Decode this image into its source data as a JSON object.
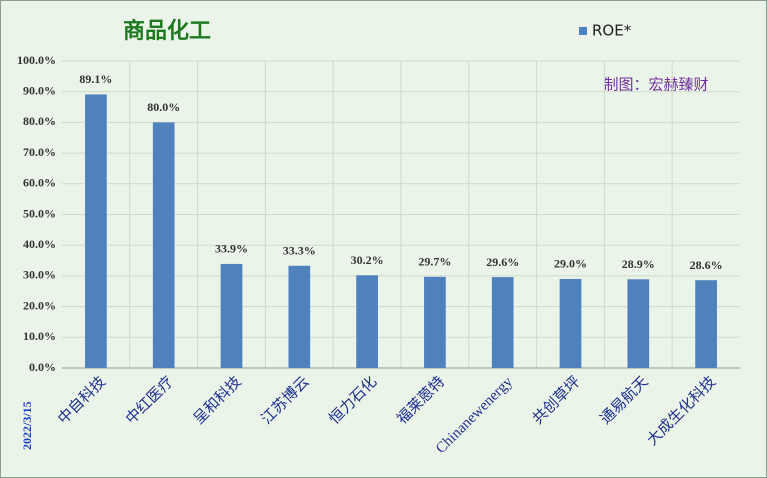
{
  "chart_data": {
    "type": "bar",
    "title": "商品化工",
    "annotation": "制图：宏赫臻财",
    "date": "2022/3/15",
    "categories": [
      "中自科技",
      "中红医疗",
      "呈和科技",
      "江苏博云",
      "恒力石化",
      "福莱蒽特",
      "Chinanewenergy",
      "共创草坪",
      "通易航天",
      "大成生化科技"
    ],
    "series": [
      {
        "name": "ROE*",
        "color": "#4f81bd",
        "values": [
          89.1,
          80.0,
          33.9,
          33.3,
          30.2,
          29.7,
          29.6,
          29.0,
          28.9,
          28.6
        ],
        "value_labels": [
          "89.1%",
          "80.0%",
          "33.9%",
          "33.3%",
          "30.2%",
          "29.7%",
          "29.6%",
          "29.0%",
          "28.9%",
          "28.6%"
        ]
      }
    ],
    "ylim": [
      0,
      100
    ],
    "yticks": [
      {
        "value": 0,
        "label": "0.0%"
      },
      {
        "value": 10,
        "label": "10.0%"
      },
      {
        "value": 20,
        "label": "20.0%"
      },
      {
        "value": 30,
        "label": "30.0%"
      },
      {
        "value": 40,
        "label": "40.0%"
      },
      {
        "value": 50,
        "label": "50.0%"
      },
      {
        "value": 60,
        "label": "60.0%"
      },
      {
        "value": 70,
        "label": "70.0%"
      },
      {
        "value": 80,
        "label": "80.0%"
      },
      {
        "value": 90,
        "label": "90.0%"
      },
      {
        "value": 100,
        "label": "100.0%"
      }
    ],
    "grid": true,
    "legend": "top-right"
  }
}
